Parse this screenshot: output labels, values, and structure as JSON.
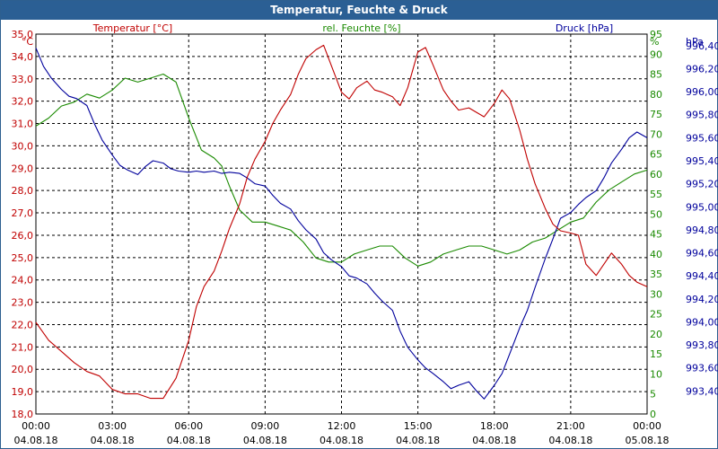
{
  "window": {
    "title": "Temperatur, Feuchte & Druck"
  },
  "chart_data": {
    "type": "line",
    "title": "Temperatur, Feuchte & Druck",
    "x_ticks": [
      {
        "time": "00:00",
        "date": "04.08.18"
      },
      {
        "time": "03:00",
        "date": "04.08.18"
      },
      {
        "time": "06:00",
        "date": "04.08.18"
      },
      {
        "time": "09:00",
        "date": "04.08.18"
      },
      {
        "time": "12:00",
        "date": "04.08.18"
      },
      {
        "time": "15:00",
        "date": "04.08.18"
      },
      {
        "time": "18:00",
        "date": "04.08.18"
      },
      {
        "time": "21:00",
        "date": "04.08.18"
      },
      {
        "time": "00:00",
        "date": "05.08.18"
      }
    ],
    "xlim_hours": [
      0,
      24
    ],
    "grid": true,
    "axes": {
      "temp": {
        "label": "Temperatur [°C]",
        "unit": "°C",
        "min": 18.0,
        "max": 35.0,
        "step": 1.0,
        "decimals": 1,
        "color": "#c00000"
      },
      "hum": {
        "label": "rel. Feuchte [%]",
        "unit": "%",
        "min": 0,
        "max": 95,
        "step": 5,
        "decimals": 0,
        "color": "#1a8a00"
      },
      "press": {
        "label": "Druck [hPa]",
        "unit": "hPa",
        "min": 993.2,
        "max": 996.5,
        "step": 0.2,
        "decimals": 2,
        "color": "#00009c",
        "tick_values": [
          993.4,
          993.6,
          993.8,
          994.0,
          994.2,
          994.4,
          994.6,
          994.8,
          995.0,
          995.2,
          995.4,
          995.6,
          995.8,
          996.0,
          996.2,
          996.4
        ]
      }
    },
    "series": [
      {
        "name": "Temperatur [°C]",
        "axis": "temp",
        "color": "#c00000",
        "x": [
          0,
          0.25,
          0.5,
          1,
          1.5,
          2,
          2.5,
          3,
          3.5,
          4,
          4.5,
          5,
          5.5,
          6,
          6.3,
          6.6,
          7,
          7.3,
          7.6,
          8,
          8.3,
          8.6,
          9,
          9.3,
          9.6,
          10,
          10.3,
          10.6,
          11,
          11.3,
          11.6,
          12,
          12.3,
          12.6,
          13,
          13.3,
          13.6,
          14,
          14.3,
          14.6,
          15,
          15.3,
          15.6,
          16,
          16.3,
          16.6,
          17,
          17.3,
          17.6,
          18,
          18.3,
          18.6,
          19,
          19.3,
          19.6,
          20,
          20.3,
          20.6,
          21,
          21.3,
          21.6,
          22,
          22.3,
          22.6,
          23,
          23.3,
          23.6,
          24
        ],
        "y": [
          22.1,
          21.7,
          21.3,
          20.8,
          20.3,
          19.9,
          19.7,
          19.1,
          18.9,
          18.9,
          18.7,
          18.7,
          19.6,
          21.3,
          22.8,
          23.7,
          24.4,
          25.3,
          26.3,
          27.4,
          28.6,
          29.4,
          30.2,
          31.0,
          31.6,
          32.3,
          33.2,
          33.9,
          34.3,
          34.5,
          33.6,
          32.4,
          32.1,
          32.6,
          32.9,
          32.5,
          32.4,
          32.2,
          31.8,
          32.6,
          34.2,
          34.4,
          33.6,
          32.5,
          32.0,
          31.6,
          31.7,
          31.5,
          31.3,
          31.9,
          32.5,
          32.1,
          30.7,
          29.4,
          28.3,
          27.2,
          26.5,
          26.2,
          26.1,
          26.0,
          24.7,
          24.2,
          24.7,
          25.2,
          24.7,
          24.2,
          23.9,
          23.7
        ]
      },
      {
        "name": "rel. Feuchte [%]",
        "axis": "hum",
        "color": "#1a8a00",
        "x": [
          0,
          0.5,
          1,
          1.5,
          2,
          2.5,
          3,
          3.5,
          4,
          4.5,
          5,
          5.5,
          6,
          6.5,
          7,
          7.3,
          7.6,
          8,
          8.5,
          9,
          9.5,
          10,
          10.5,
          11,
          11.5,
          12,
          12.5,
          13,
          13.5,
          14,
          14.5,
          15,
          15.5,
          16,
          16.5,
          17,
          17.5,
          18,
          18.5,
          19,
          19.5,
          20,
          20.5,
          21,
          21.5,
          22,
          22.5,
          23,
          23.5,
          24
        ],
        "y": [
          72,
          74,
          77,
          78,
          80,
          79,
          81,
          84,
          83,
          84,
          85,
          83,
          74,
          66,
          64,
          62,
          57,
          51,
          48,
          48,
          47,
          46,
          43,
          39,
          38,
          38,
          40,
          41,
          42,
          42,
          39,
          37,
          38,
          40,
          41,
          42,
          42,
          41,
          40,
          41,
          43,
          44,
          46,
          48,
          49,
          53,
          56,
          58,
          60,
          61
        ]
      },
      {
        "name": "Druck [hPa]",
        "axis": "press",
        "color": "#00009c",
        "x": [
          0,
          0.3,
          0.6,
          1,
          1.3,
          1.6,
          2,
          2.3,
          2.6,
          3,
          3.3,
          3.6,
          4,
          4.3,
          4.6,
          5,
          5.3,
          5.6,
          6,
          6.3,
          6.6,
          7,
          7.3,
          7.6,
          8,
          8.3,
          8.6,
          9,
          9.3,
          9.6,
          10,
          10.3,
          10.6,
          11,
          11.3,
          11.6,
          12,
          12.3,
          12.6,
          13,
          13.3,
          13.6,
          14,
          14.3,
          14.6,
          15,
          15.3,
          15.6,
          16,
          16.3,
          16.6,
          17,
          17.3,
          17.6,
          18,
          18.3,
          18.6,
          19,
          19.3,
          19.6,
          20,
          20.3,
          20.6,
          21,
          21.3,
          21.6,
          22,
          22.3,
          22.6,
          23,
          23.3,
          23.6,
          24
        ],
        "y": [
          996.38,
          996.22,
          996.12,
          996.02,
          995.96,
          995.94,
          995.88,
          995.72,
          995.58,
          995.45,
          995.36,
          995.32,
          995.28,
          995.35,
          995.4,
          995.38,
          995.33,
          995.31,
          995.3,
          995.31,
          995.3,
          995.31,
          995.29,
          995.3,
          995.29,
          995.25,
          995.2,
          995.18,
          995.1,
          995.03,
          994.98,
          994.88,
          994.8,
          994.72,
          994.6,
          994.54,
          994.48,
          994.4,
          994.38,
          994.33,
          994.25,
          994.18,
          994.1,
          993.92,
          993.78,
          993.67,
          993.6,
          993.55,
          993.48,
          993.42,
          993.45,
          993.48,
          993.4,
          993.33,
          993.45,
          993.55,
          993.72,
          993.95,
          994.1,
          994.3,
          994.55,
          994.72,
          994.9,
          994.95,
          995.02,
          995.08,
          995.14,
          995.25,
          995.38,
          995.5,
          995.6,
          995.65,
          995.6
        ]
      }
    ]
  }
}
